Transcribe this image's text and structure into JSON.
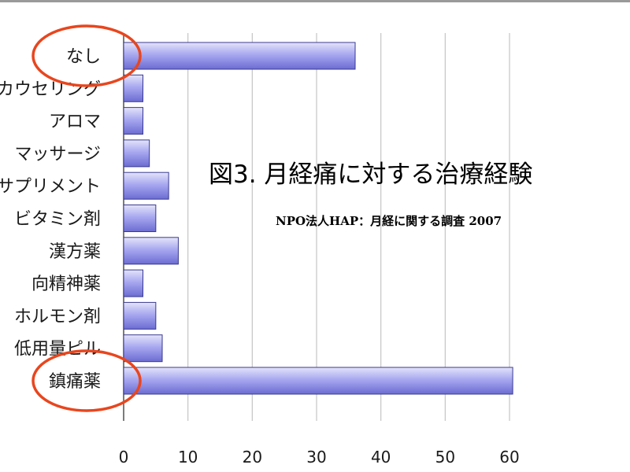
{
  "chart_data": {
    "type": "bar",
    "orientation": "horizontal",
    "title": "図3. 月経痛に対する治療経験",
    "subtitle": "NPO法人HAP：月経に関する調査 2007",
    "categories": [
      "なし",
      "カウセリング",
      "アロマ",
      "マッサージ",
      "サプリメント",
      "ビタミン剤",
      "漢方薬",
      "向精神薬",
      "ホルモン剤",
      "低用量ピル",
      "鎮痛薬"
    ],
    "values": [
      36,
      3,
      3,
      4,
      7,
      5,
      8.5,
      3,
      5,
      6,
      60.5
    ],
    "xlim": [
      0,
      60
    ],
    "x_ticks": [
      "0",
      "10",
      "20",
      "30",
      "40",
      "50",
      "60"
    ],
    "grid": true,
    "highlighted_categories": [
      "なし",
      "鎮痛薬"
    ],
    "colors": {
      "bar_fill": "#a8a8f0",
      "bar_stroke": "#3a3a90",
      "highlight_ring": "#e8461e",
      "grid": "#c4c4c4"
    }
  }
}
